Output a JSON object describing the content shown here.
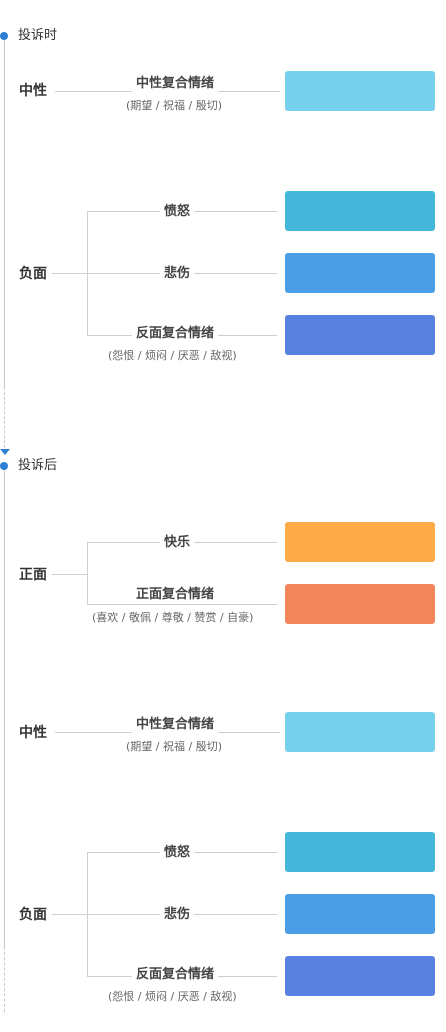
{
  "phases": [
    {
      "title": "投诉时",
      "categories": [
        {
          "label": "中性",
          "emotions": [
            {
              "label": "中性复合情绪",
              "sub": "(期望 / 祝福 / 殷切)",
              "color": "#76d0eb"
            }
          ]
        },
        {
          "label": "负面",
          "emotions": [
            {
              "label": "愤怒",
              "color": "#44b7db"
            },
            {
              "label": "悲伤",
              "color": "#4a9ee6"
            },
            {
              "label": "反面复合情绪",
              "sub": "(怨恨 / 烦闷 / 厌恶 / 敌视)",
              "color": "#5981e0"
            }
          ]
        }
      ]
    },
    {
      "title": "投诉后",
      "categories": [
        {
          "label": "正面",
          "emotions": [
            {
              "label": "快乐",
              "color": "#ffab47"
            },
            {
              "label": "正面复合情绪",
              "sub": "(喜欢 / 敬佩 / 尊敬 / 赞赏 / 自豪)",
              "color": "#f28559"
            }
          ]
        },
        {
          "label": "中性",
          "emotions": [
            {
              "label": "中性复合情绪",
              "sub": "(期望 / 祝福 / 殷切)",
              "color": "#76d0eb"
            }
          ]
        },
        {
          "label": "负面",
          "emotions": [
            {
              "label": "愤怒",
              "color": "#44b7db"
            },
            {
              "label": "悲伤",
              "color": "#4a9ee6"
            },
            {
              "label": "反面复合情绪",
              "sub": "(怨恨 / 烦闷 / 厌恶 / 敌视)",
              "color": "#5981e0"
            }
          ]
        }
      ]
    }
  ],
  "colors": {
    "accent": "#2d7fd3",
    "line": "#cfcfcf"
  }
}
